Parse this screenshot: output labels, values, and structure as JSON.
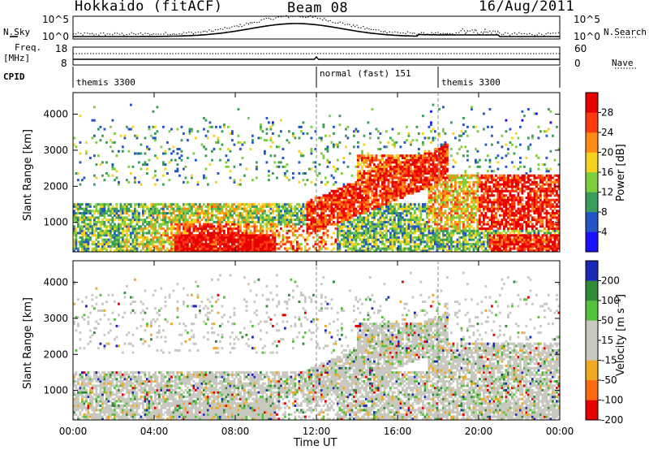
{
  "header": {
    "station": "Hokkaido (fitACF)",
    "beam": "Beam 08",
    "date": "16/Aug/2011"
  },
  "left_labels": {
    "nsky": "N.Sky",
    "freq": "Freq.",
    "freq_unit": "[MHz]",
    "cpid": "CPID"
  },
  "right_labels": {
    "nsearch": "N.Search",
    "nave": "Nave"
  },
  "noise_axis": {
    "left_top": "10^5",
    "left_bottom": "10^0",
    "right_top": "10^5",
    "right_bottom": "10^0"
  },
  "freq_axis": {
    "left_top": "18",
    "left_bottom": "8",
    "right_top": "60",
    "right_bottom": "0"
  },
  "cpid_segments": [
    {
      "label": "themis 3300",
      "start_hour": 0
    },
    {
      "label": "normal (fast) 151",
      "start_hour": 12
    },
    {
      "label": "themis 3300",
      "start_hour": 18
    }
  ],
  "chart_data": [
    {
      "type": "heatmap",
      "name": "power",
      "ylabel": "Slant Range [km]",
      "yticks": [
        1000,
        2000,
        3000,
        4000
      ],
      "ylim": [
        180,
        4600
      ],
      "xlim_hours": [
        0,
        24
      ],
      "colorbar": {
        "label": "Power [dB]",
        "ticks": [
          "4",
          "8",
          "12",
          "16",
          "20",
          "24",
          "28"
        ],
        "colors": [
          "#1a10ff",
          "#2255c8",
          "#3a9d5a",
          "#7ccf3c",
          "#f4d21e",
          "#ff8a14",
          "#ff3a10",
          "#e80000"
        ]
      }
    },
    {
      "type": "heatmap",
      "name": "velocity",
      "ylabel": "Slant Range [km]",
      "yticks": [
        1000,
        2000,
        3000,
        4000
      ],
      "ylim": [
        180,
        4600
      ],
      "xlim_hours": [
        0,
        24
      ],
      "colorbar": {
        "label": "Velocity [m s⁻¹]",
        "ticks": [
          "200",
          "100",
          "50",
          "15",
          "-15",
          "-50",
          "-100",
          "-200"
        ],
        "colors": [
          "#1c28b8",
          "#2f8a3a",
          "#55c23c",
          "#c8c8c0",
          "#c8c8c0",
          "#f0a820",
          "#ff6a10",
          "#e80000"
        ]
      }
    }
  ],
  "xaxis": {
    "label": "Time UT",
    "ticks": [
      "00:00",
      "04:00",
      "08:00",
      "12:00",
      "16:00",
      "20:00",
      "00:00"
    ]
  }
}
